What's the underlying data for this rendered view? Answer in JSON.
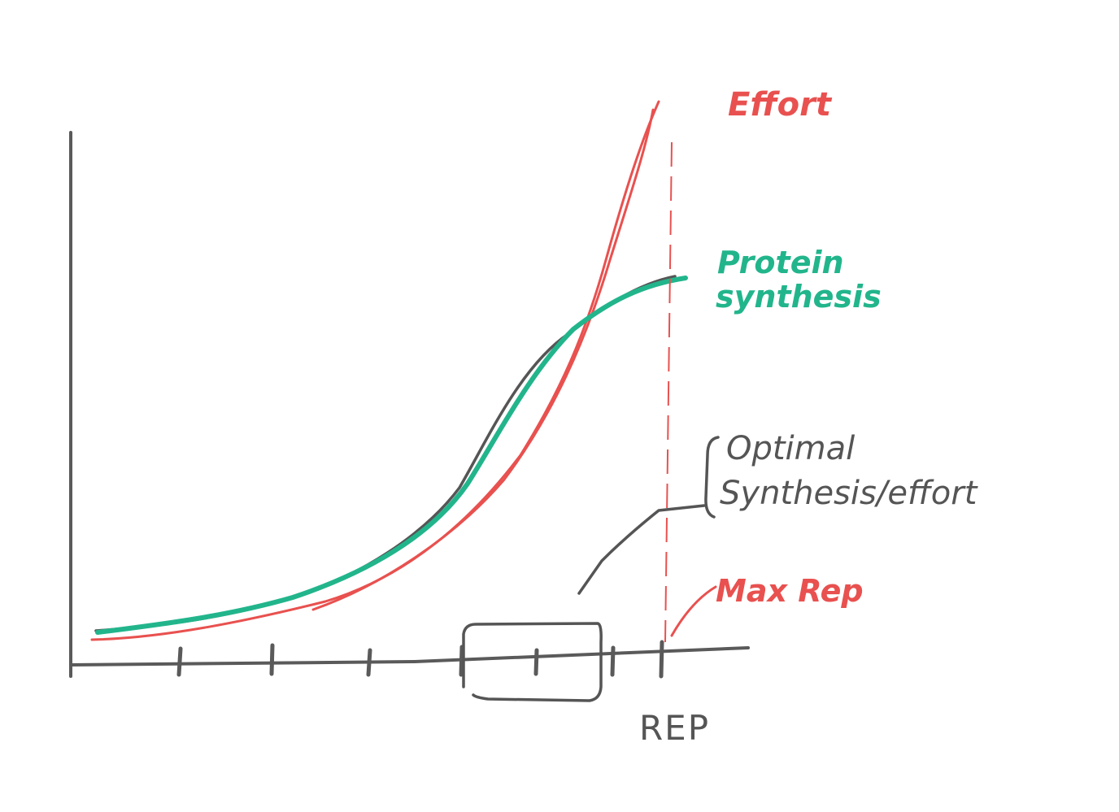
{
  "labels": {
    "effort": "Effort",
    "protein_line1": "Protein",
    "protein_line2": "synthesis",
    "optimal_line1": "Optimal",
    "optimal_line2": "Synthesis/effort",
    "max_rep": "Max Rep",
    "x_axis": "REP"
  },
  "colors": {
    "effort": "#e8514f",
    "protein_synthesis": "#22b58c",
    "ink": "#555555",
    "background": "#ffffff"
  }
}
